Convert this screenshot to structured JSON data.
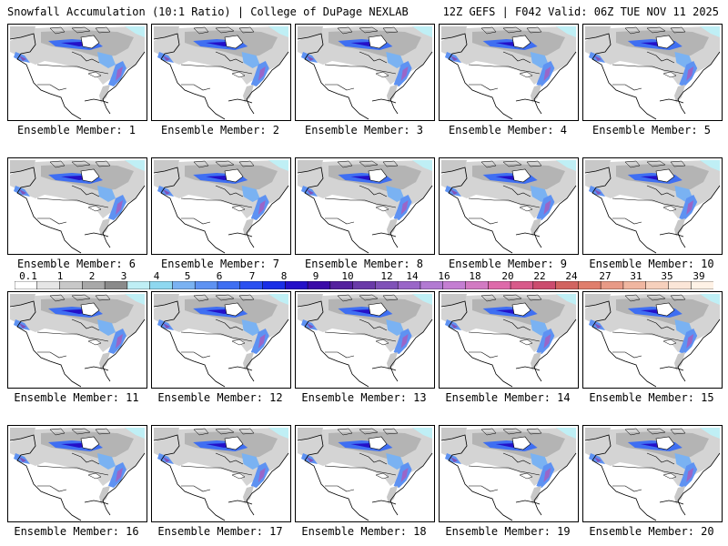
{
  "header": {
    "title": "Snowfall Accumulation (10:1 Ratio) | College of DuPage NEXLAB",
    "run_info": "12Z GEFS | F042 Valid: 06Z TUE NOV 11 2025"
  },
  "panels": [
    {
      "label": "Ensemble Member: 1"
    },
    {
      "label": "Ensemble Member: 2"
    },
    {
      "label": "Ensemble Member: 3"
    },
    {
      "label": "Ensemble Member: 4"
    },
    {
      "label": "Ensemble Member: 5"
    },
    {
      "label": "Ensemble Member: 6"
    },
    {
      "label": "Ensemble Member: 7"
    },
    {
      "label": "Ensemble Member: 8"
    },
    {
      "label": "Ensemble Member: 9"
    },
    {
      "label": "Ensemble Member: 10"
    },
    {
      "label": "Ensemble Member: 11"
    },
    {
      "label": "Ensemble Member: 12"
    },
    {
      "label": "Ensemble Member: 13"
    },
    {
      "label": "Ensemble Member: 14"
    },
    {
      "label": "Ensemble Member: 15"
    },
    {
      "label": "Ensemble Member: 16"
    },
    {
      "label": "Ensemble Member: 17"
    },
    {
      "label": "Ensemble Member: 18"
    },
    {
      "label": "Ensemble Member: 19"
    },
    {
      "label": "Ensemble Member: 20"
    }
  ],
  "colorbar": {
    "ticks": [
      "0.1",
      "1",
      "2",
      "3",
      "4",
      "5",
      "6",
      "7",
      "8",
      "9",
      "10",
      "12",
      "14",
      "16",
      "18",
      "20",
      "22",
      "24",
      "27",
      "31",
      "35",
      "39"
    ],
    "colors": [
      "#ffffff",
      "#e6e6e6",
      "#c8c8c8",
      "#a8a8a8",
      "#8a8a8a",
      "#bfeff5",
      "#8ed8f0",
      "#7ab2f2",
      "#5e92f2",
      "#3f6ff2",
      "#2b50f0",
      "#1a2ee6",
      "#2410c8",
      "#3a0aa8",
      "#54209e",
      "#6a3aa8",
      "#8052b8",
      "#9a66c8",
      "#b27ad2",
      "#c47ed2",
      "#d27ac2",
      "#de6aaa",
      "#d85a8a",
      "#cc4c6e",
      "#d26460",
      "#e07e6c",
      "#e89a86",
      "#f0b6a0",
      "#f6d0bc",
      "#fbe6d8",
      "#fff2e6"
    ]
  }
}
